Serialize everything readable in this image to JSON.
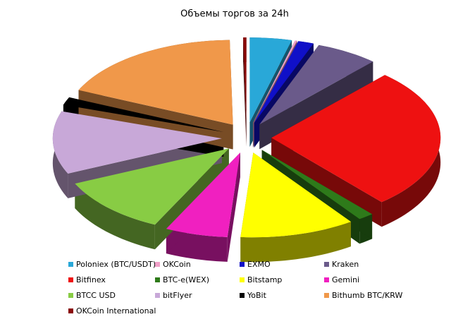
{
  "chart_data": {
    "type": "pie3d",
    "title": "Объемы торгов за 24h",
    "categories": [
      "Poloniex (BTC/USDT)",
      "OKCoin",
      "EXMO",
      "Kraken",
      "Bitfinex",
      "BTC-e(WEX)",
      "Bitstamp",
      "Gemini",
      "BTCC  USD",
      "bitFlyer",
      "YoBit",
      "Bithumb BTC/KRW",
      "OKCoin  International"
    ],
    "values": [
      4,
      0.2,
      1.5,
      6,
      27,
      1.5,
      11,
      6,
      11,
      12,
      1.5,
      18,
      0.3
    ],
    "colors": [
      "#29a8d8",
      "#f0a0c8",
      "#1010c8",
      "#6a5a8a",
      "#ee1111",
      "#2e7a1a",
      "#ffff00",
      "#f020c0",
      "#88cc44",
      "#c8a8d8",
      "#000000",
      "#f0984a",
      "#8a0a0a"
    ]
  }
}
